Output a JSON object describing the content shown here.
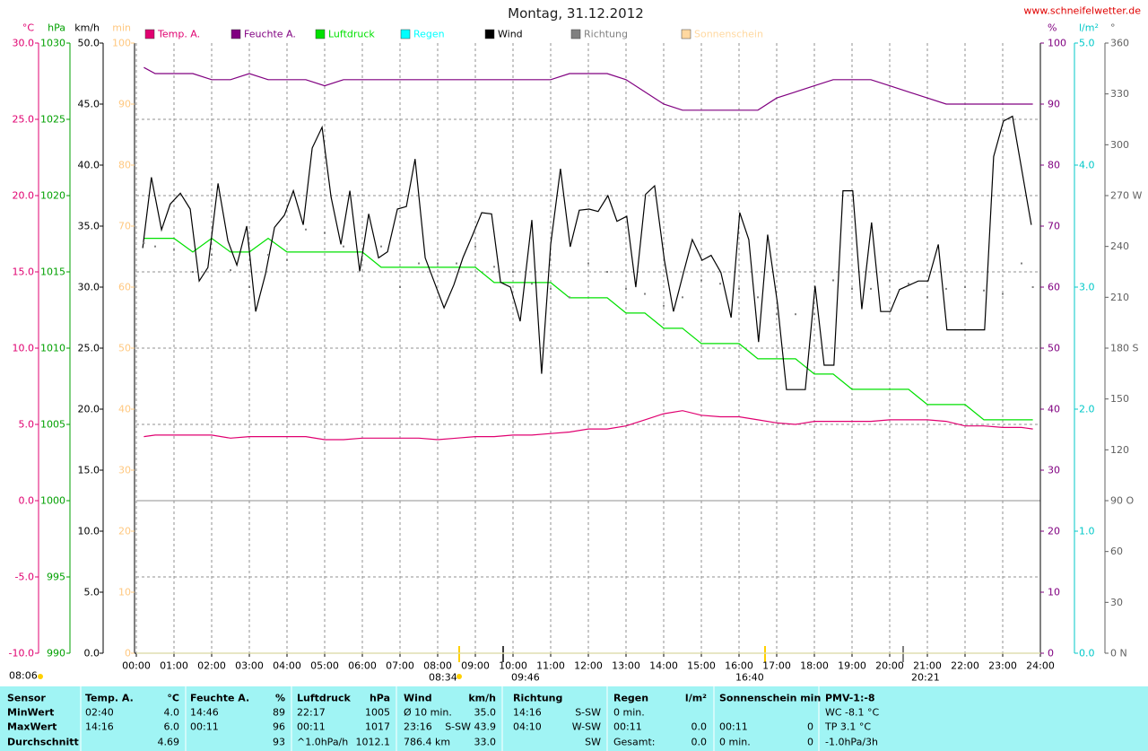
{
  "chart_data": {
    "type": "line",
    "title": "Montag, 31.12.2012",
    "source": "www.schneifelwetter.de",
    "legend": "top",
    "grid": true,
    "grid_axis": "y_temp",
    "zero_line": true,
    "xlim": [
      0,
      24
    ],
    "xticks": [
      {
        "value": 0,
        "label": "00:00"
      },
      {
        "value": 1,
        "label": "01:00"
      },
      {
        "value": 2,
        "label": "02:00"
      },
      {
        "value": 3,
        "label": "03:00"
      },
      {
        "value": 4,
        "label": "04:00"
      },
      {
        "value": 5,
        "label": "05:00"
      },
      {
        "value": 6,
        "label": "06:00"
      },
      {
        "value": 7,
        "label": "07:00"
      },
      {
        "value": 8,
        "label": "08:00"
      },
      {
        "value": 9,
        "label": "09:00"
      },
      {
        "value": 10,
        "label": "10:00"
      },
      {
        "value": 11,
        "label": "11:00"
      },
      {
        "value": 12,
        "label": "12:00"
      },
      {
        "value": 13,
        "label": "13:00"
      },
      {
        "value": 14,
        "label": "14:00"
      },
      {
        "value": 15,
        "label": "15:00"
      },
      {
        "value": 16,
        "label": "16:00"
      },
      {
        "value": 17,
        "label": "17:00"
      },
      {
        "value": 18,
        "label": "18:00"
      },
      {
        "value": 19,
        "label": "19:00"
      },
      {
        "value": 20,
        "label": "20:00"
      },
      {
        "value": 21,
        "label": "21:00"
      },
      {
        "value": 22,
        "label": "22:00"
      },
      {
        "value": 23,
        "label": "23:00"
      },
      {
        "value": 24,
        "label": "24:00"
      }
    ],
    "axes": {
      "y_temp": {
        "side": "left",
        "unit": "°C",
        "color": "#e00070",
        "lim": [
          -10,
          30
        ],
        "ticks": [
          {
            "value": -10,
            "label": "-10.0"
          },
          {
            "value": -5,
            "label": "-5.0"
          },
          {
            "value": 0,
            "label": "0.0"
          },
          {
            "value": 5,
            "label": "5.0"
          },
          {
            "value": 10,
            "label": "10.0"
          },
          {
            "value": 15,
            "label": "15.0"
          },
          {
            "value": 20,
            "label": "20.0"
          },
          {
            "value": 25,
            "label": "25.0"
          },
          {
            "value": 30,
            "label": "30.0"
          }
        ]
      },
      "y_pressure": {
        "side": "left",
        "unit": "hPa",
        "color": "#00a000",
        "lim": [
          990,
          1030
        ],
        "ticks": [
          990,
          995,
          1000,
          1005,
          1010,
          1015,
          1020,
          1025,
          1030
        ]
      },
      "y_wind": {
        "side": "left",
        "unit": "km/h",
        "color": "#000000",
        "lim": [
          0,
          50
        ],
        "ticks": [
          {
            "value": 0,
            "label": "0.0"
          },
          {
            "value": 5,
            "label": "5.0"
          },
          {
            "value": 10,
            "label": "10.0"
          },
          {
            "value": 15,
            "label": "15.0"
          },
          {
            "value": 20,
            "label": "20.0"
          },
          {
            "value": 25,
            "label": "25.0"
          },
          {
            "value": 30,
            "label": "30.0"
          },
          {
            "value": 35,
            "label": "35.0"
          },
          {
            "value": 40,
            "label": "40.0"
          },
          {
            "value": 45,
            "label": "45.0"
          },
          {
            "value": 50,
            "label": "50.0"
          }
        ]
      },
      "y_sun": {
        "side": "left",
        "unit": "min",
        "color": "#ffc880",
        "lim": [
          0,
          100
        ],
        "ticks": [
          0,
          10,
          20,
          30,
          40,
          50,
          60,
          70,
          80,
          90,
          100
        ]
      },
      "y2_humidity": {
        "side": "right",
        "unit": "%",
        "color": "#800080",
        "lim": [
          0,
          100
        ],
        "ticks": [
          0,
          10,
          20,
          30,
          40,
          50,
          60,
          70,
          80,
          90,
          100
        ]
      },
      "y2_rain": {
        "side": "right",
        "unit": "l/m²",
        "color": "#00c8c8",
        "lim": [
          0,
          5
        ],
        "ticks": [
          {
            "value": 0,
            "label": "0.0"
          },
          {
            "value": 1,
            "label": "1.0"
          },
          {
            "value": 2,
            "label": "2.0"
          },
          {
            "value": 3,
            "label": "3.0"
          },
          {
            "value": 4,
            "label": "4.0"
          },
          {
            "value": 5,
            "label": "5.0"
          }
        ]
      },
      "y2_direction": {
        "side": "right",
        "unit": "°",
        "color": "#606060",
        "lim": [
          0,
          360
        ],
        "ticks": [
          {
            "value": 0,
            "label": "0 N"
          },
          30,
          60,
          {
            "value": 90,
            "label": "90 O"
          },
          120,
          150,
          {
            "value": 180,
            "label": "180 S"
          },
          210,
          240,
          {
            "value": 270,
            "label": "270 W"
          },
          300,
          330,
          360
        ]
      }
    },
    "x": [
      0.2,
      0.5,
      1,
      1.5,
      2,
      2.5,
      3,
      3.5,
      4,
      4.5,
      5,
      5.5,
      6,
      6.5,
      7,
      7.5,
      8,
      8.5,
      9,
      9.5,
      10,
      10.5,
      11,
      11.5,
      12,
      12.5,
      13,
      13.5,
      14,
      14.5,
      15,
      15.5,
      16,
      16.5,
      17,
      17.5,
      18,
      18.5,
      19,
      19.5,
      20,
      20.5,
      21,
      21.5,
      22,
      22.5,
      23,
      23.5,
      23.8
    ],
    "series": [
      {
        "name": "Temp. A.",
        "color": "#e00070",
        "axis": "y_temp",
        "style": "line",
        "values": [
          4.2,
          4.3,
          4.3,
          4.3,
          4.3,
          4.1,
          4.2,
          4.2,
          4.2,
          4.2,
          4.0,
          4.0,
          4.1,
          4.1,
          4.1,
          4.1,
          4.0,
          4.1,
          4.2,
          4.2,
          4.3,
          4.3,
          4.4,
          4.5,
          4.7,
          4.7,
          4.9,
          5.3,
          5.7,
          5.9,
          5.6,
          5.5,
          5.5,
          5.3,
          5.1,
          5.0,
          5.2,
          5.2,
          5.2,
          5.2,
          5.3,
          5.3,
          5.3,
          5.2,
          4.9,
          4.9,
          4.8,
          4.8,
          4.7
        ]
      },
      {
        "name": "Feuchte A.",
        "color": "#800080",
        "axis": "y2_humidity",
        "style": "line",
        "values": [
          96,
          95,
          95,
          95,
          94,
          94,
          95,
          94,
          94,
          94,
          93,
          94,
          94,
          94,
          94,
          94,
          94,
          94,
          94,
          94,
          94,
          94,
          94,
          95,
          95,
          95,
          94,
          92,
          90,
          89,
          89,
          89,
          89,
          89,
          91,
          92,
          93,
          94,
          94,
          94,
          93,
          92,
          91,
          90,
          90,
          90,
          90,
          90,
          90
        ]
      },
      {
        "name": "Luftdruck",
        "color": "#00e000",
        "axis": "y_pressure",
        "style": "line",
        "values": [
          1017.2,
          1017.2,
          1017.2,
          1016.3,
          1017.2,
          1016.3,
          1016.3,
          1017.2,
          1016.3,
          1016.3,
          1016.3,
          1016.3,
          1016.3,
          1015.3,
          1015.3,
          1015.3,
          1015.3,
          1015.3,
          1015.3,
          1014.3,
          1014.3,
          1014.3,
          1014.3,
          1013.3,
          1013.3,
          1013.3,
          1012.3,
          1012.3,
          1011.3,
          1011.3,
          1010.3,
          1010.3,
          1010.3,
          1009.3,
          1009.3,
          1009.3,
          1008.3,
          1008.3,
          1007.3,
          1007.3,
          1007.3,
          1007.3,
          1006.3,
          1006.3,
          1006.3,
          1005.3,
          1005.3,
          1005.3,
          1005.3
        ]
      },
      {
        "name": "Regen",
        "color": "#00ffff",
        "axis": "y2_rain",
        "style": "line",
        "x": [
          0,
          24
        ],
        "values": [
          0,
          0
        ]
      },
      {
        "name": "Wind",
        "color": "#000000",
        "axis": "y_wind",
        "style": "line",
        "x": [
          0.17,
          0.4,
          0.67,
          0.9,
          1.17,
          1.43,
          1.67,
          1.9,
          2.17,
          2.43,
          2.67,
          2.93,
          3.17,
          3.43,
          3.67,
          3.93,
          4.17,
          4.43,
          4.67,
          4.93,
          5.17,
          5.43,
          5.67,
          5.93,
          6.17,
          6.43,
          6.67,
          6.93,
          7.17,
          7.4,
          7.67,
          7.9,
          8.17,
          8.43,
          8.67,
          8.93,
          9.17,
          9.43,
          9.67,
          9.93,
          10.19,
          10.5,
          10.76,
          11.0,
          11.26,
          11.52,
          11.76,
          12.02,
          12.26,
          12.52,
          12.76,
          13.02,
          13.26,
          13.52,
          13.76,
          14.02,
          14.26,
          14.52,
          14.76,
          15.02,
          15.26,
          15.52,
          15.79,
          16.02,
          16.26,
          16.52,
          16.76,
          17.02,
          17.26,
          17.76,
          18.02,
          18.26,
          18.52,
          18.76,
          19.02,
          19.26,
          19.52,
          19.76,
          20.02,
          20.26,
          20.76,
          21.02,
          21.29,
          21.52,
          22.52,
          22.76,
          23.02,
          23.26,
          23.76
        ],
        "values": [
          33.2,
          39.0,
          34.7,
          36.8,
          37.7,
          36.4,
          30.5,
          31.6,
          38.5,
          33.8,
          31.8,
          35.0,
          28.0,
          31.1,
          34.9,
          35.9,
          37.9,
          35.1,
          41.4,
          43.1,
          37.4,
          33.5,
          37.9,
          31.3,
          36.0,
          32.4,
          32.9,
          36.4,
          36.6,
          40.5,
          32.4,
          30.5,
          28.3,
          30.2,
          32.4,
          34.3,
          36.1,
          36.0,
          30.4,
          30.0,
          27.2,
          35.5,
          22.9,
          33.5,
          39.7,
          33.3,
          36.3,
          36.4,
          36.2,
          37.5,
          35.4,
          35.8,
          30.0,
          37.6,
          38.3,
          32.2,
          28.0,
          31.1,
          33.9,
          32.2,
          32.6,
          31.2,
          27.5,
          36.1,
          33.9,
          25.5,
          34.3,
          28.7,
          21.6,
          21.6,
          30.1,
          23.6,
          23.6,
          37.9,
          37.9,
          28.2,
          35.3,
          28.0,
          28.0,
          29.8,
          30.5,
          30.5,
          33.5,
          26.5,
          26.5,
          40.7,
          43.6,
          44.0,
          35.1
        ]
      },
      {
        "name": "Richtung",
        "color": "#808080",
        "axis": "y2_direction",
        "style": "dots",
        "values": [
          242,
          240,
          238,
          225,
          235,
          226,
          216,
          235,
          232,
          250,
          248,
          240,
          235,
          240,
          216,
          230,
          230,
          230,
          240,
          228,
          225,
          218,
          215,
          210,
          230,
          225,
          215,
          212,
          205,
          210,
          220,
          218,
          215,
          210,
          200,
          200,
          200,
          220,
          215,
          215,
          220,
          218,
          210,
          215,
          216,
          214,
          212,
          230,
          216
        ]
      },
      {
        "name": "Sonnenschein",
        "color": "#ffd8a0",
        "axis": "y_sun",
        "style": "line",
        "x": [
          0,
          24
        ],
        "values": [
          0,
          0
        ]
      }
    ],
    "annotations": [
      "08:06",
      "08:34",
      "09:46",
      "16:40",
      "20:21"
    ]
  },
  "summary": {
    "row_labels": [
      "Sensor",
      "MinWert",
      "MaxWert",
      "Durchschnitt"
    ],
    "columns": [
      {
        "title": "Temp. A.",
        "unit": "°C",
        "rows": [
          {
            "left": "02:40",
            "right": "4.0"
          },
          {
            "left": "14:16",
            "right": "6.0"
          },
          {
            "right": "4.69"
          }
        ]
      },
      {
        "title": "Feuchte A.",
        "unit": "%",
        "rows": [
          {
            "left": "14:46",
            "right": "89"
          },
          {
            "left": "00:11",
            "right": "96"
          },
          {
            "right": "93"
          }
        ]
      },
      {
        "title": "Luftdruck",
        "unit": "hPa",
        "rows": [
          {
            "left": "22:17",
            "right": "1005"
          },
          {
            "left": "00:11",
            "right": "1017"
          },
          {
            "left": "^1.0hPa/h",
            "right": "1012.1"
          }
        ]
      },
      {
        "title": "Wind",
        "unit": "km/h",
        "rows": [
          {
            "left": "Ø 10 min.",
            "right": "35.0"
          },
          {
            "left": "23:16",
            "mid": "S-SW",
            "right": "43.9"
          },
          {
            "left": "786.4 km",
            "right": "33.0"
          }
        ]
      },
      {
        "title": "Richtung",
        "rows": [
          {
            "left": "14:16",
            "right": "S-SW"
          },
          {
            "left": "04:10",
            "right": "W-SW"
          },
          {
            "right": "SW"
          }
        ]
      },
      {
        "title": "Regen",
        "unit": "l/m²",
        "rows": [
          {
            "left": "0 min."
          },
          {
            "left": "00:11",
            "right": "0.0"
          },
          {
            "left": "Gesamt:",
            "right": "0.0"
          }
        ]
      },
      {
        "title": "Sonnenschein min",
        "rows": [
          {},
          {
            "left": "00:11",
            "right": "0"
          },
          {
            "left": "0 min.",
            "right": "0"
          }
        ]
      },
      {
        "title": "PMV-1:-8",
        "rows": [
          {
            "left": "WC -8.1 °C"
          },
          {
            "left": "TP 3.1 °C"
          },
          {
            "left": "-1.0hPa/3h"
          }
        ]
      }
    ]
  }
}
